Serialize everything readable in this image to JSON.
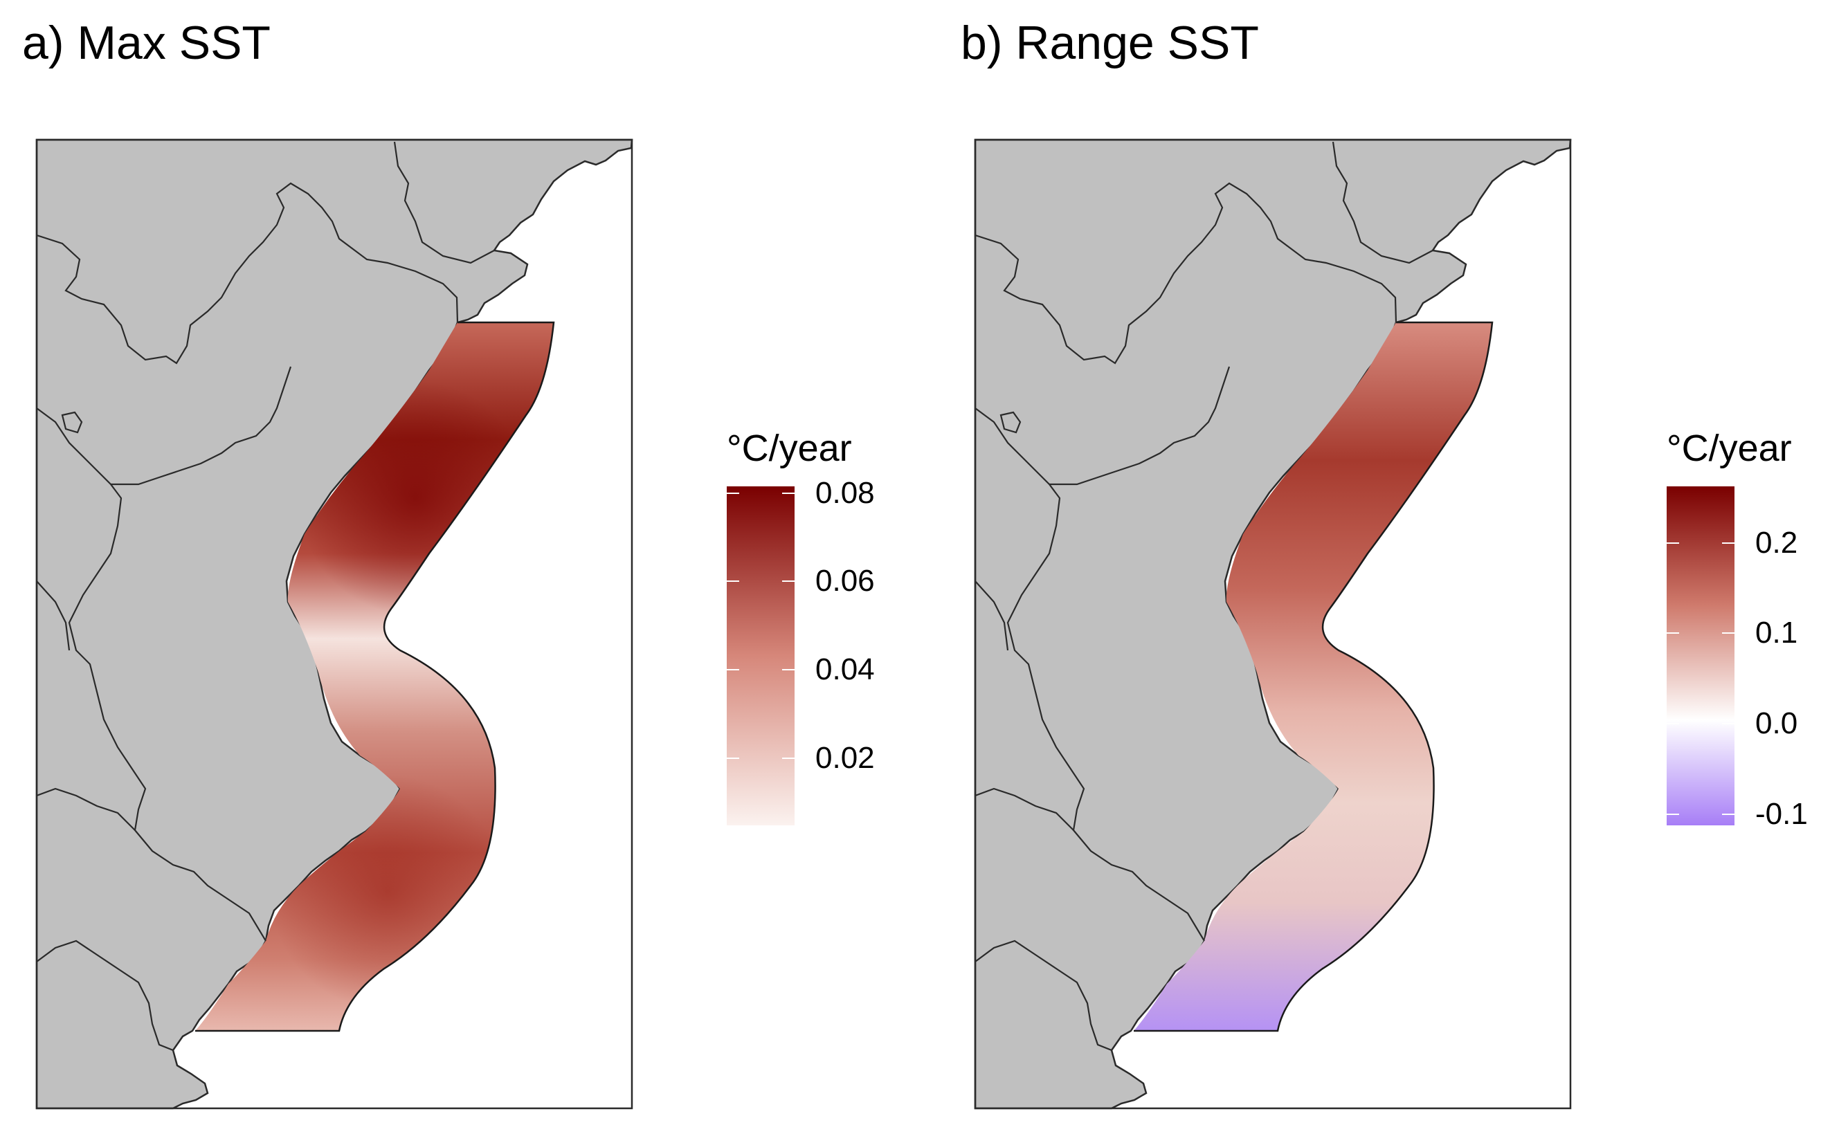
{
  "panels": [
    {
      "title": "a) Max SST",
      "legend": {
        "title": "°C/year",
        "ticks": [
          "0.08",
          "0.06",
          "0.04",
          "0.02"
        ],
        "range": [
          0.005,
          0.08
        ],
        "colors": [
          "#fbf2ef",
          "#7a0000"
        ]
      }
    },
    {
      "title": "b) Range SST",
      "legend": {
        "title": "°C/year",
        "ticks": [
          "0.2",
          "0.1",
          "0.0",
          "-0.1"
        ],
        "range": [
          -0.12,
          0.26
        ],
        "colors": [
          "#a77ef6",
          "#ffffff",
          "#7a0000"
        ]
      }
    }
  ],
  "colors": {
    "land": "#c0c0c0",
    "border": "#2a2a2a",
    "sea": "#ffffff"
  }
}
